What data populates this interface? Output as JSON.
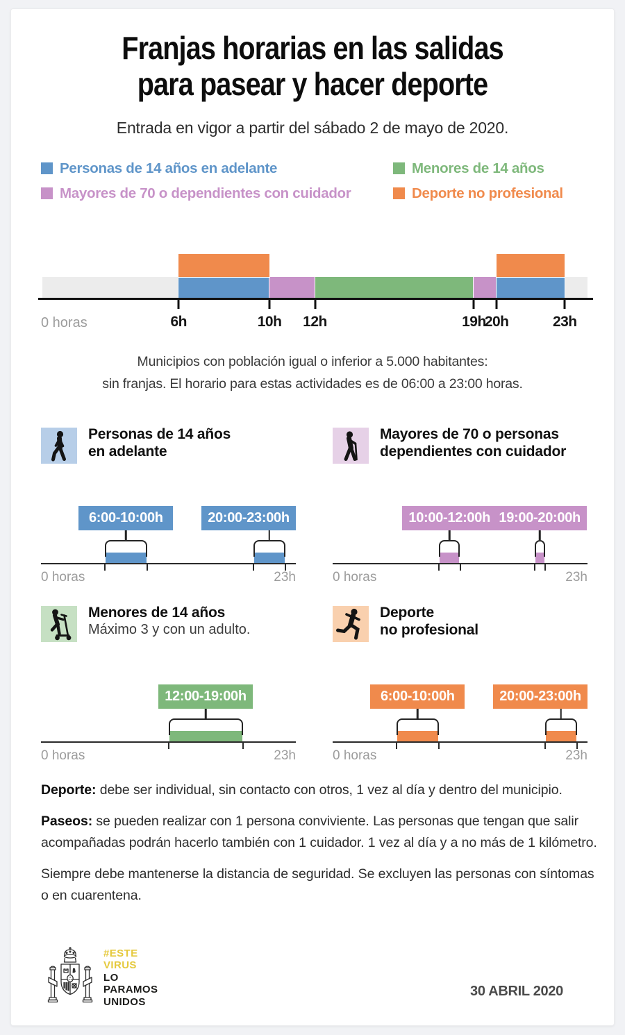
{
  "header": {
    "title_lines": [
      "Franjas horarias en las salidas",
      "para pasear y hacer deporte"
    ],
    "subtitle": "Entrada en vigor a partir del sábado 2 de mayo de 2020."
  },
  "legend": {
    "columns": [
      [
        {
          "id": "personas-14",
          "label": "Personas de 14 años en adelante",
          "color": "#5f95c9"
        },
        {
          "id": "mayores-70",
          "label": "Mayores de 70 o dependientes con cuidador",
          "color": "#c792c8"
        }
      ],
      [
        {
          "id": "menores-14",
          "label": "Menores de 14 años",
          "color": "#7eb87b"
        },
        {
          "id": "deporte",
          "label": "Deporte no profesional",
          "color": "#f08a4c"
        }
      ]
    ]
  },
  "chart_data": {
    "type": "timeline",
    "title": "Franjas horarias en las salidas para pasear y hacer deporte",
    "axis": {
      "unit": "hours",
      "min": 0,
      "max": 24,
      "start_label": "0 horas",
      "ticks": [
        {
          "hour": 6,
          "label": "6h"
        },
        {
          "hour": 10,
          "label": "10h"
        },
        {
          "hour": 12,
          "label": "12h"
        },
        {
          "hour": 19,
          "label": "19h"
        },
        {
          "hour": 20,
          "label": "20h"
        },
        {
          "hour": 23,
          "label": "23h"
        }
      ]
    },
    "track": {
      "start": 0,
      "end": 24,
      "color": "#ececec"
    },
    "main_segments": [
      {
        "group": "personas-14",
        "start": 6,
        "end": 10,
        "color": "#5f95c9"
      },
      {
        "group": "mayores-70",
        "start": 10,
        "end": 12,
        "color": "#c792c8"
      },
      {
        "group": "menores-14",
        "start": 12,
        "end": 19,
        "color": "#7eb87b"
      },
      {
        "group": "mayores-70",
        "start": 19,
        "end": 20,
        "color": "#c792c8"
      },
      {
        "group": "personas-14",
        "start": 20,
        "end": 23,
        "color": "#5f95c9"
      }
    ],
    "overlay_segments": [
      {
        "group": "deporte",
        "start": 6,
        "end": 10,
        "color": "#f08a4c"
      },
      {
        "group": "deporte",
        "start": 20,
        "end": 23,
        "color": "#f08a4c"
      }
    ]
  },
  "municipios_note": [
    "Municipios con población igual o inferior a 5.000 habitantes:",
    "sin franjas. El horario para estas actividades es de 06:00 a 23:00 horas."
  ],
  "panels": [
    {
      "id": "personas-14",
      "icon": "walking-person-icon",
      "icon_bg": "#b7cee8",
      "color": "#5f95c9",
      "title_lines": [
        "Personas de 14 años",
        "en adelante"
      ],
      "subtitle": "",
      "axis": {
        "min": 0,
        "max": 24,
        "start_label": "0 horas",
        "end_label": "23h"
      },
      "ranges": [
        {
          "label": "6:00-10:00h",
          "start": 6,
          "end": 10
        },
        {
          "label": "20:00-23:00h",
          "start": 20,
          "end": 23
        }
      ]
    },
    {
      "id": "mayores-70",
      "icon": "elderly-with-cane-icon",
      "icon_bg": "#e6d1e7",
      "color": "#c792c8",
      "title_lines": [
        "Mayores de 70 o personas",
        "dependientes con cuidador"
      ],
      "subtitle": "",
      "axis": {
        "min": 0,
        "max": 24,
        "start_label": "0 horas",
        "end_label": "23h"
      },
      "ranges": [
        {
          "label": "10:00-12:00h",
          "start": 10,
          "end": 12
        },
        {
          "label": "19:00-20:00h",
          "start": 19,
          "end": 20
        }
      ]
    },
    {
      "id": "menores-14",
      "icon": "child-on-scooter-icon",
      "icon_bg": "#c6e0c3",
      "color": "#7eb87b",
      "title_lines": [
        "Menores de 14 años"
      ],
      "subtitle": "Máximo 3 y con un adulto.",
      "axis": {
        "min": 0,
        "max": 24,
        "start_label": "0 horas",
        "end_label": "23h"
      },
      "ranges": [
        {
          "label": "12:00-19:00h",
          "start": 12,
          "end": 19
        }
      ]
    },
    {
      "id": "deporte",
      "icon": "running-person-icon",
      "icon_bg": "#f9d0ae",
      "color": "#f08a4c",
      "title_lines": [
        "Deporte",
        "no profesional"
      ],
      "subtitle": "",
      "axis": {
        "min": 0,
        "max": 24,
        "start_label": "0 horas",
        "end_label": "23h"
      },
      "ranges": [
        {
          "label": "6:00-10:00h",
          "start": 6,
          "end": 10
        },
        {
          "label": "20:00-23:00h",
          "start": 20,
          "end": 23
        }
      ]
    }
  ],
  "notes": [
    {
      "lead": "Deporte:",
      "text": " debe ser individual, sin contacto con otros, 1 vez al día y dentro del municipio."
    },
    {
      "lead": "Paseos:",
      "text": " se pueden realizar con 1 persona conviviente. Las personas que tengan que salir acompañadas podrán hacerlo también con 1 cuidador. 1 vez al día y a no más de 1 kilómetro."
    },
    {
      "lead": "",
      "text": "Siempre debe mantenerse la distancia de seguridad. Se excluyen las personas con síntomas o en cuarentena."
    }
  ],
  "footer": {
    "emblem": "spain-coat-of-arms",
    "campaign_lines": [
      {
        "text": "#ESTE",
        "color": "#e5c93d"
      },
      {
        "text": "VIRUS",
        "color": "#e5c93d"
      },
      {
        "text": "LO",
        "color": "#1d1d1b"
      },
      {
        "text": "PARAMOS",
        "color": "#1d1d1b"
      },
      {
        "text": "UNIDOS",
        "color": "#1d1d1b"
      }
    ],
    "date": "30 ABRIL 2020"
  }
}
